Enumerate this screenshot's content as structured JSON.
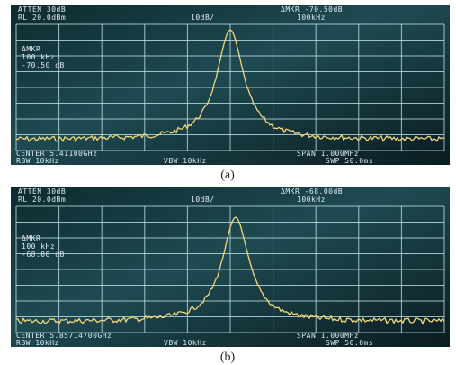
{
  "panels": [
    {
      "atten": "ATTEN 30dB",
      "ref_level": "RL 20.0dBm",
      "scale": "10dB/",
      "delta_marker": "ΔMKR -70.50dB",
      "marker_freq": "100kHz",
      "readout": [
        "ΔMKR",
        "100 kHz",
        "-70.50 dB"
      ],
      "center": "CENTER 5.41100GHz",
      "rbw": "RBW 10kHz",
      "vbw": "VBW 10kHz",
      "span": "SPAN 1.000MHz",
      "sweep": "SWP 50.0ms",
      "caption": "(a)"
    },
    {
      "atten": "ATTEN 30dB",
      "ref_level": "RL 20.0dBm",
      "scale": "10dB/",
      "delta_marker": "ΔMKR -68.00dB",
      "marker_freq": "100kHz",
      "readout": [
        "ΔMKR",
        "100 kHz",
        "-68.00 dB"
      ],
      "center": "CENTER 5.85714700GHz",
      "rbw": "RBW 10kHz",
      "vbw": "VBW 10kHz",
      "span": "SPAN 1.000MHz",
      "sweep": "SWP 50.0ms",
      "caption": "(b)"
    }
  ]
}
